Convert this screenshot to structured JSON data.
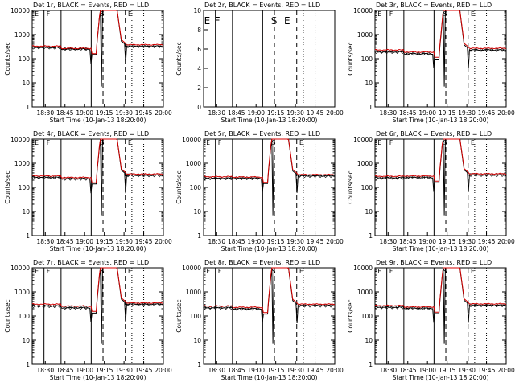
{
  "colors": {
    "events": "#000000",
    "lld": "#d40000",
    "background": "#ffffff"
  },
  "x_axis": {
    "ticks": [
      "18:30",
      "18:45",
      "19:00",
      "19:15",
      "19:30",
      "19:45",
      "20:00"
    ],
    "label": "Start Time (10-Jan-13 18:20:00)"
  },
  "y_axis": {
    "label": "Counts/sec",
    "ticks": [
      "1",
      "10",
      "100",
      "1000",
      "10000"
    ],
    "scale": "log"
  },
  "markers": [
    "E",
    "F",
    "S",
    "E"
  ],
  "chart_data": [
    {
      "type": "line",
      "title": "Det 1r, BLACK = Events, RED = LLD",
      "xlabel": "Start Time (10-Jan-13 18:20:00)",
      "ylabel": "Counts/sec",
      "y_scale": "log",
      "ylim": [
        1,
        10000
      ],
      "series": [
        {
          "name": "Events",
          "pre": 290,
          "between": 250,
          "post": 330
        },
        {
          "name": "LLD",
          "pre": 330,
          "between": 270,
          "post": 380
        }
      ]
    },
    {
      "type": "line",
      "title": "Det 2r, BLACK = Events, RED = LLD",
      "xlabel": "Start Time (10-Jan-13 18:20:00)",
      "ylabel": "Counts/sec",
      "y_scale": "linear",
      "ylim": [
        0,
        10
      ],
      "series": []
    },
    {
      "type": "line",
      "title": "Det 3r, BLACK = Events, RED = LLD",
      "xlabel": "Start Time (10-Jan-13 18:20:00)",
      "ylabel": "Counts/sec",
      "y_scale": "log",
      "ylim": [
        1,
        10000
      ],
      "series": [
        {
          "name": "Events",
          "pre": 190,
          "between": 160,
          "post": 230
        },
        {
          "name": "LLD",
          "pre": 230,
          "between": 190,
          "post": 270
        }
      ]
    },
    {
      "type": "line",
      "title": "Det 4r, BLACK = Events, RED = LLD",
      "xlabel": "Start Time (10-Jan-13 18:20:00)",
      "ylabel": "Counts/sec",
      "y_scale": "log",
      "ylim": [
        1,
        10000
      ],
      "series": [
        {
          "name": "Events",
          "pre": 260,
          "between": 230,
          "post": 320
        },
        {
          "name": "LLD",
          "pre": 300,
          "between": 260,
          "post": 360
        }
      ]
    },
    {
      "type": "line",
      "title": "Det 5r, BLACK = Events, RED = LLD",
      "xlabel": "Start Time (10-Jan-13 18:20:00)",
      "ylabel": "Counts/sec",
      "y_scale": "log",
      "ylim": [
        1,
        10000
      ],
      "series": [
        {
          "name": "Events",
          "pre": 240,
          "between": 240,
          "post": 300
        },
        {
          "name": "LLD",
          "pre": 280,
          "between": 270,
          "post": 340
        }
      ]
    },
    {
      "type": "line",
      "title": "Det 6r, BLACK = Events, RED = LLD",
      "xlabel": "Start Time (10-Jan-13 18:20:00)",
      "ylabel": "Counts/sec",
      "y_scale": "log",
      "ylim": [
        1,
        10000
      ],
      "series": [
        {
          "name": "Events",
          "pre": 250,
          "between": 260,
          "post": 330
        },
        {
          "name": "LLD",
          "pre": 290,
          "between": 300,
          "post": 370
        }
      ]
    },
    {
      "type": "line",
      "title": "Det 7r, BLACK = Events, RED = LLD",
      "xlabel": "Start Time (10-Jan-13 18:20:00)",
      "ylabel": "Counts/sec",
      "y_scale": "log",
      "ylim": [
        1,
        10000
      ],
      "series": [
        {
          "name": "Events",
          "pre": 260,
          "between": 220,
          "post": 310
        },
        {
          "name": "LLD",
          "pre": 310,
          "between": 260,
          "post": 350
        }
      ]
    },
    {
      "type": "line",
      "title": "Det 8r, BLACK = Events, RED = LLD",
      "xlabel": "Start Time (10-Jan-13 18:20:00)",
      "ylabel": "Counts/sec",
      "y_scale": "log",
      "ylim": [
        1,
        10000
      ],
      "series": [
        {
          "name": "Events",
          "pre": 220,
          "between": 200,
          "post": 270
        },
        {
          "name": "LLD",
          "pre": 260,
          "between": 230,
          "post": 310
        }
      ]
    },
    {
      "type": "line",
      "title": "Det 9r, BLACK = Events, RED = LLD",
      "xlabel": "Start Time (10-Jan-13 18:20:00)",
      "ylabel": "Counts/sec",
      "y_scale": "log",
      "ylim": [
        1,
        10000
      ],
      "series": [
        {
          "name": "Events",
          "pre": 230,
          "between": 210,
          "post": 280
        },
        {
          "name": "LLD",
          "pre": 270,
          "between": 240,
          "post": 320
        }
      ]
    }
  ],
  "det2_y_ticks": [
    "0",
    "2",
    "4",
    "6",
    "8",
    "10"
  ]
}
